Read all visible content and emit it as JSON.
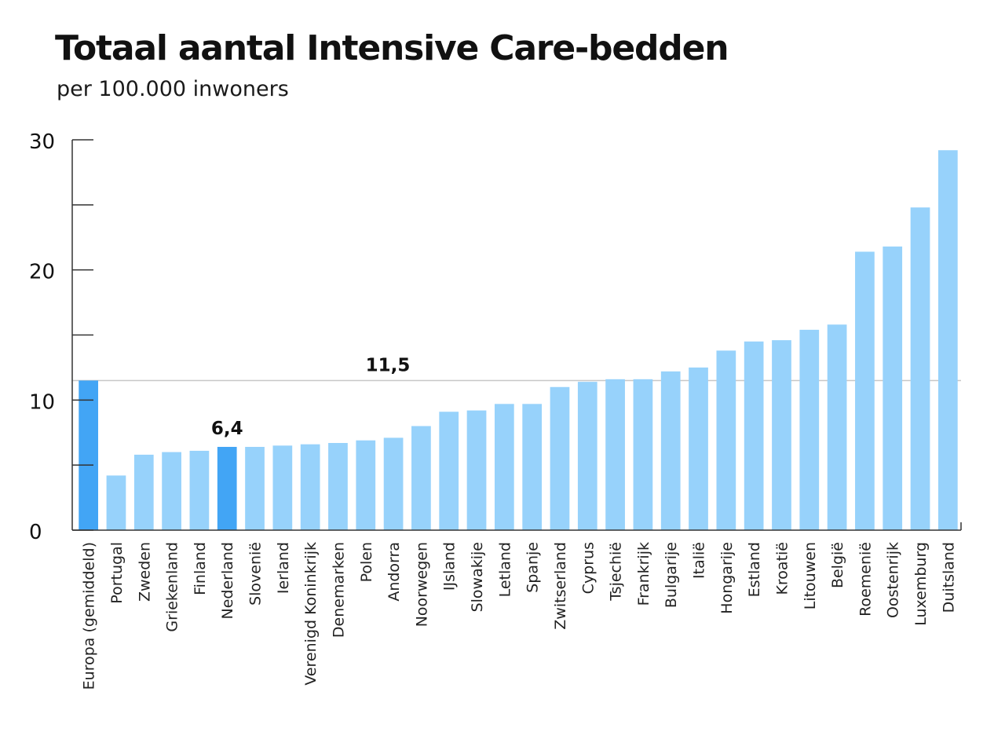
{
  "chart_data": {
    "type": "bar",
    "title": "Totaal aantal Intensive Care-bedden",
    "subtitle": "per 100.000 inwoners",
    "xlabel": "",
    "ylabel": "",
    "ylim": [
      0,
      30
    ],
    "yticks": [
      "0",
      "10",
      "20",
      "30"
    ],
    "grid": false,
    "categories": [
      "Europa (gemiddeld)",
      "Portugal",
      "Zweden",
      "Griekenland",
      "Finland",
      "Nederland",
      "Slovenië",
      "Ierland",
      "Verenigd Koninkrijk",
      "Denemarken",
      "Polen",
      "Andorra",
      "Noorwegen",
      "IJsland",
      "Slowakije",
      "Letland",
      "Spanje",
      "Zwitserland",
      "Cyprus",
      "Tsjechië",
      "Frankrijk",
      "Bulgarije",
      "Italië",
      "Hongarije",
      "Estland",
      "Kroatië",
      "Litouwen",
      "België",
      "Roemenië",
      "Oostenrijk",
      "Luxemburg",
      "Duitsland"
    ],
    "values": [
      11.5,
      4.2,
      5.8,
      6.0,
      6.1,
      6.4,
      6.4,
      6.5,
      6.6,
      6.7,
      6.9,
      7.1,
      8.0,
      9.1,
      9.2,
      9.7,
      9.7,
      11.0,
      11.4,
      11.6,
      11.6,
      12.2,
      12.5,
      13.8,
      14.5,
      14.6,
      15.4,
      15.8,
      21.4,
      21.8,
      24.8,
      29.2
    ],
    "highlighted": [
      "Europa (gemiddeld)",
      "Nederland"
    ],
    "reference_line": {
      "value": 11.5,
      "label": "11,5"
    },
    "annotations": [
      {
        "category": "Nederland",
        "label": "6,4"
      }
    ],
    "colors": {
      "bar": "#97d2fb",
      "highlight": "#42a5f5",
      "axis": "#333333",
      "reference": "#c8c8c8"
    }
  }
}
